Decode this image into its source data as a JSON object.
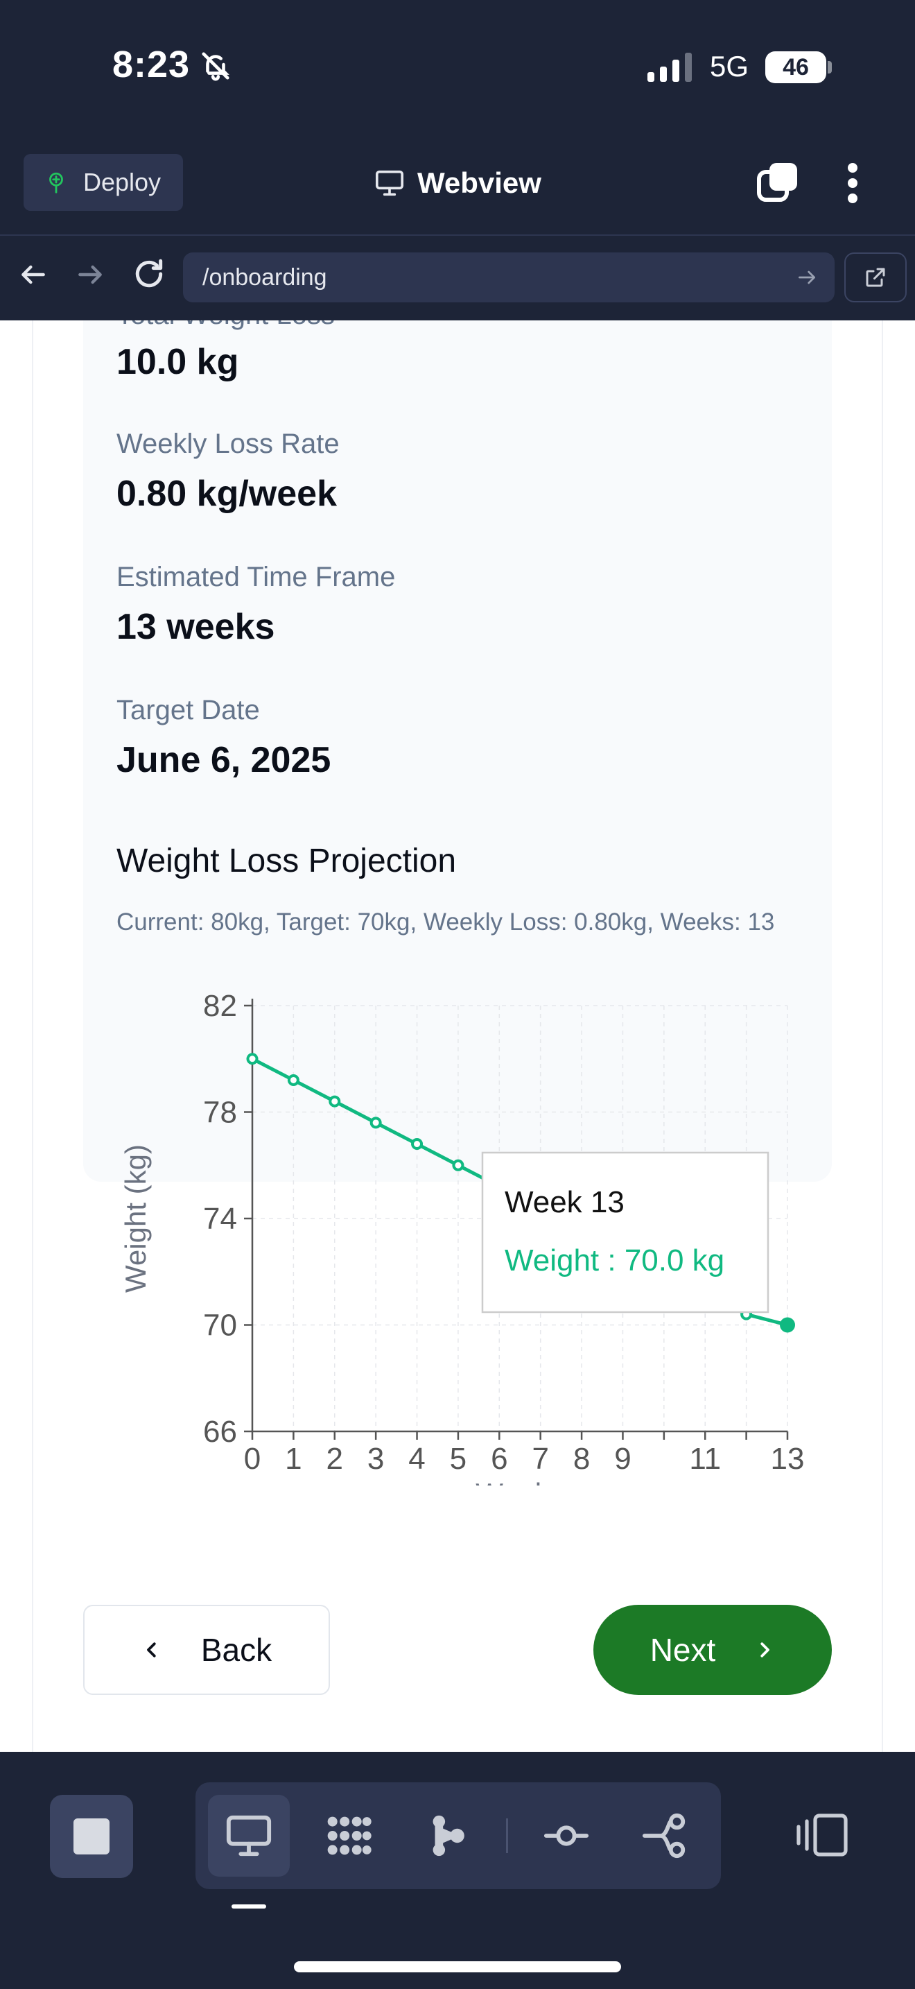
{
  "status_bar": {
    "time": "8:23",
    "network": "5G",
    "battery": "46",
    "icons": [
      "bell-slash-icon",
      "signal-icon",
      "battery-icon"
    ]
  },
  "appbar": {
    "deploy_label": "Deploy",
    "title": "Webview",
    "icons": [
      "deploy-icon",
      "monitor-icon",
      "tabs-icon",
      "more-vertical-icon"
    ]
  },
  "urlbar": {
    "url": "/onboarding",
    "icons": [
      "arrow-left-icon",
      "arrow-right-icon",
      "reload-icon",
      "go-arrow-icon",
      "open-external-icon"
    ]
  },
  "summary": {
    "cut_label": "Total Weight Loss",
    "total_loss": "10.0 kg",
    "weekly_rate_label": "Weekly Loss Rate",
    "weekly_rate": "0.80 kg/week",
    "timeframe_label": "Estimated Time Frame",
    "timeframe": "13 weeks",
    "target_date_label": "Target Date",
    "target_date": "June 6, 2025"
  },
  "projection": {
    "title": "Weight Loss Projection",
    "subtitle": "Current: 80kg, Target: 70kg, Weekly Loss: 0.80kg, Weeks: 13"
  },
  "chart_data": {
    "type": "line",
    "title": "",
    "xlabel": "Weeks",
    "ylabel": "Weight (kg)",
    "x": [
      0,
      1,
      2,
      3,
      4,
      5,
      6,
      7,
      8,
      9,
      10,
      11,
      12,
      13
    ],
    "series": [
      {
        "name": "Weight",
        "values": [
          80.0,
          79.2,
          78.4,
          77.6,
          76.8,
          76.0,
          75.2,
          74.4,
          73.6,
          72.8,
          72.0,
          71.2,
          70.4,
          70.0
        ]
      }
    ],
    "x_ticks": [
      "0",
      "1",
      "2",
      "3",
      "4",
      "5",
      "6",
      "7",
      "8",
      "9",
      "11",
      "13"
    ],
    "y_ticks": [
      "66",
      "70",
      "74",
      "78",
      "82"
    ],
    "xlim": [
      0,
      13
    ],
    "ylim": [
      66,
      82
    ],
    "grid": true,
    "line_color": "#10b981",
    "tooltip": {
      "title": "Week 13",
      "series_label": "Weight",
      "value": "70.0 kg",
      "index": 13
    }
  },
  "buttons": {
    "back": "Back",
    "next": "Next"
  },
  "colors": {
    "accent_green": "#1c7a26",
    "chart_green": "#10b981",
    "chrome_dark": "#1d2437"
  },
  "dock": {
    "icons": [
      "stop-icon",
      "desktop-icon",
      "dots-grid-icon",
      "flow-icon",
      "commit-icon",
      "branch-icon",
      "panel-toggle-icon"
    ]
  }
}
